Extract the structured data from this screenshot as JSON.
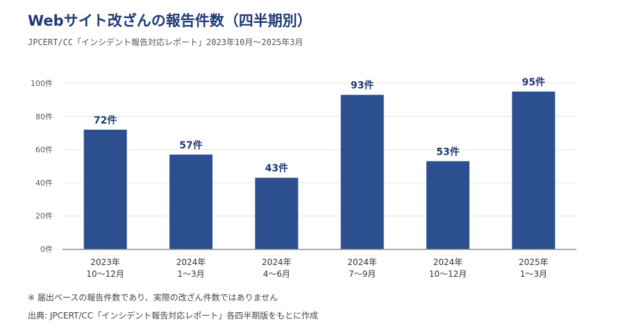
{
  "header": {
    "title": "Webサイト改ざんの報告件数（四半期別）",
    "subtitle": "JPCERT/CC「インシデント報告対応レポート」2023年10月～2025年3月"
  },
  "notes": {
    "note": "※ 届出ベースの報告件数であり、実際の改ざん件数ではありません",
    "source": "出典: JPCERT/CC「インシデント報告対応レポート」各四半期版をもとに作成"
  },
  "colors": {
    "bar": "#2c4f8f",
    "title": "#1f3a73",
    "grid": "#e6e6e6",
    "axis": "#8c8c8c"
  },
  "chart_data": {
    "type": "bar",
    "categories": [
      [
        "2023年",
        "10～12月"
      ],
      [
        "2024年",
        "1～3月"
      ],
      [
        "2024年",
        "4～6月"
      ],
      [
        "2024年",
        "7～9月"
      ],
      [
        "2024年",
        "10～12月"
      ],
      [
        "2025年",
        "1～3月"
      ]
    ],
    "values": [
      72,
      57,
      43,
      93,
      53,
      95
    ],
    "value_labels": [
      "72件",
      "57件",
      "43件",
      "93件",
      "53件",
      "95件"
    ],
    "yticks": [
      0,
      20,
      40,
      60,
      80,
      100
    ],
    "ytick_labels": [
      "0件",
      "20件",
      "40件",
      "60件",
      "80件",
      "100件"
    ],
    "ylim": [
      0,
      100
    ],
    "grid": true,
    "legend": "none"
  }
}
